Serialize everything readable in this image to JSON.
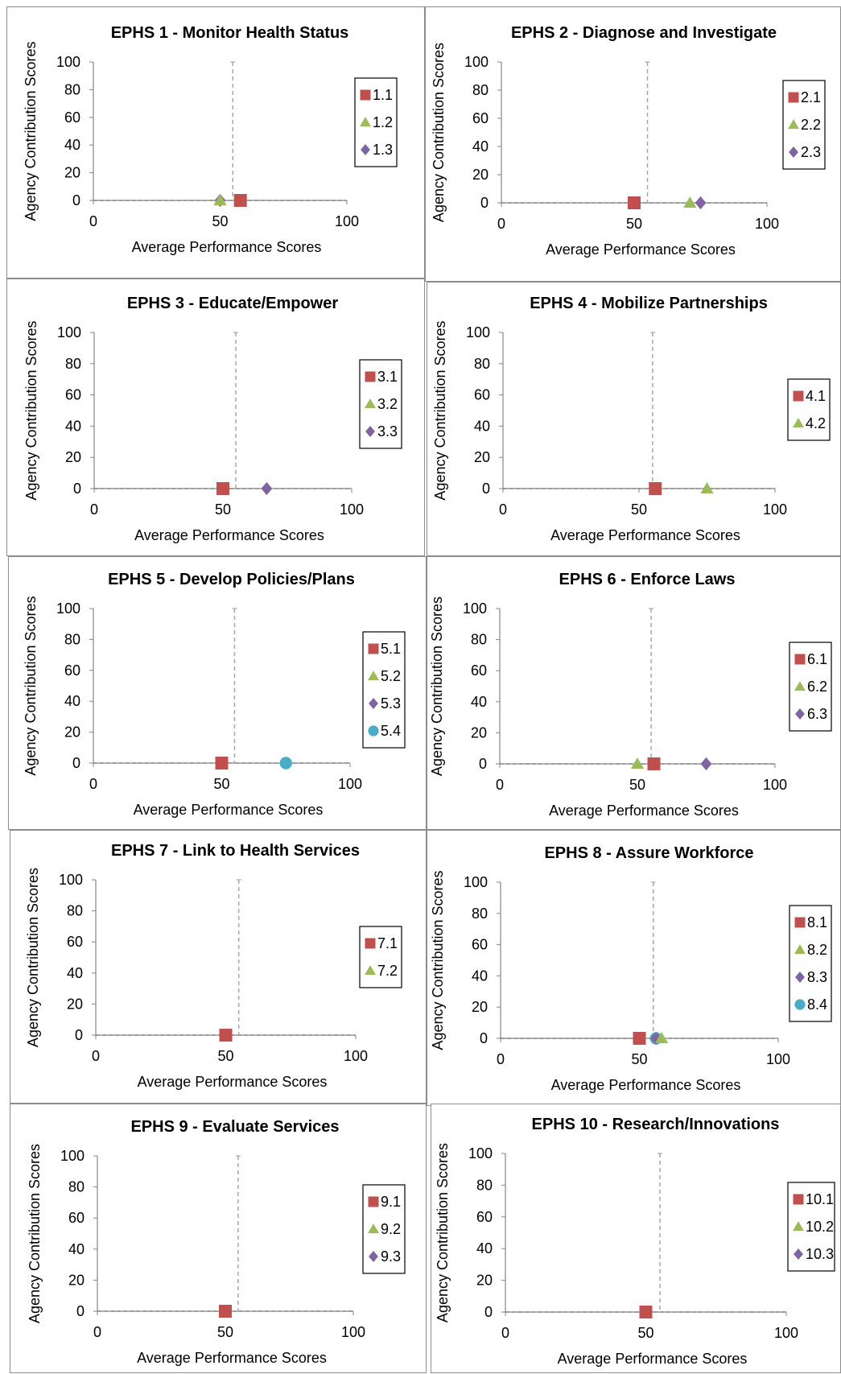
{
  "colors": {
    "s1": "#c0504d",
    "s2": "#9bbb59",
    "s3": "#8064a2",
    "s4": "#4bacc6",
    "axis": "#868686",
    "refline": "#a6a6a6",
    "border": "#8c8c8c"
  },
  "chart_data": [
    {
      "type": "scatter",
      "title": "EPHS 1 - Monitor Health Status",
      "xlabel": "Average Performance Scores",
      "ylabel": "Agency Contribution Scores",
      "xlim": [
        0,
        100
      ],
      "ylim": [
        0,
        100
      ],
      "xticks": [
        "0",
        "50",
        "100"
      ],
      "yticks": [
        "0",
        "20",
        "40",
        "60",
        "80",
        "100"
      ],
      "reference_x": 55,
      "grid": false,
      "legend_position": "right",
      "series": [
        {
          "name": "1.1",
          "marker": "square",
          "x": 58,
          "y": 0
        },
        {
          "name": "1.2",
          "marker": "triangle",
          "x": 50,
          "y": 0
        },
        {
          "name": "1.3",
          "marker": "diamond",
          "x": 50,
          "y": 0
        }
      ]
    },
    {
      "type": "scatter",
      "title": "EPHS 2 - Diagnose and Investigate",
      "xlabel": "Average Performance Scores",
      "ylabel": "Agency Contribution Scores",
      "xlim": [
        0,
        100
      ],
      "ylim": [
        0,
        100
      ],
      "xticks": [
        "0",
        "50",
        "100"
      ],
      "yticks": [
        "0",
        "20",
        "40",
        "60",
        "80",
        "100"
      ],
      "reference_x": 55,
      "grid": false,
      "legend_position": "right",
      "series": [
        {
          "name": "2.1",
          "marker": "square",
          "x": 50,
          "y": 0
        },
        {
          "name": "2.2",
          "marker": "triangle",
          "x": 71,
          "y": 0
        },
        {
          "name": "2.3",
          "marker": "diamond",
          "x": 75,
          "y": 0
        }
      ]
    },
    {
      "type": "scatter",
      "title": "EPHS 3 - Educate/Empower",
      "xlabel": "Average Performance Scores",
      "ylabel": "Agency Contribution Scores",
      "xlim": [
        0,
        100
      ],
      "ylim": [
        0,
        100
      ],
      "xticks": [
        "0",
        "50",
        "100"
      ],
      "yticks": [
        "0",
        "20",
        "40",
        "60",
        "80",
        "100"
      ],
      "reference_x": 55,
      "grid": false,
      "legend_position": "right",
      "series": [
        {
          "name": "3.1",
          "marker": "square",
          "x": 50,
          "y": 0
        },
        {
          "name": "3.2",
          "marker": "triangle",
          "x": 50,
          "y": 0
        },
        {
          "name": "3.3",
          "marker": "diamond",
          "x": 67,
          "y": 0
        }
      ]
    },
    {
      "type": "scatter",
      "title": "EPHS 4 - Mobilize Partnerships",
      "xlabel": "Average Performance Scores",
      "ylabel": "Agency Contribution Scores",
      "xlim": [
        0,
        100
      ],
      "ylim": [
        0,
        100
      ],
      "xticks": [
        "0",
        "50",
        "100"
      ],
      "yticks": [
        "0",
        "20",
        "40",
        "60",
        "80",
        "100"
      ],
      "reference_x": 55,
      "grid": false,
      "legend_position": "right",
      "series": [
        {
          "name": "4.1",
          "marker": "square",
          "x": 56,
          "y": 0
        },
        {
          "name": "4.2",
          "marker": "triangle",
          "x": 75,
          "y": 0
        }
      ]
    },
    {
      "type": "scatter",
      "title": "EPHS 5 - Develop Policies/Plans",
      "xlabel": "Average Performance Scores",
      "ylabel": "Agency Contribution Scores",
      "xlim": [
        0,
        100
      ],
      "ylim": [
        0,
        100
      ],
      "xticks": [
        "0",
        "50",
        "100"
      ],
      "yticks": [
        "0",
        "20",
        "40",
        "60",
        "80",
        "100"
      ],
      "reference_x": 55,
      "grid": false,
      "legend_position": "right",
      "series": [
        {
          "name": "5.1",
          "marker": "square",
          "x": 50,
          "y": 0
        },
        {
          "name": "5.2",
          "marker": "triangle",
          "x": 50,
          "y": 0
        },
        {
          "name": "5.3",
          "marker": "diamond",
          "x": 50,
          "y": 0
        },
        {
          "name": "5.4",
          "marker": "circle",
          "x": 75,
          "y": 0
        }
      ]
    },
    {
      "type": "scatter",
      "title": "EPHS 6 - Enforce Laws",
      "xlabel": "Average Performance Scores",
      "ylabel": "Agency Contribution Scores",
      "xlim": [
        0,
        100
      ],
      "ylim": [
        0,
        100
      ],
      "xticks": [
        "0",
        "50",
        "100"
      ],
      "yticks": [
        "0",
        "20",
        "40",
        "60",
        "80",
        "100"
      ],
      "reference_x": 55,
      "grid": false,
      "legend_position": "right",
      "series": [
        {
          "name": "6.1",
          "marker": "square",
          "x": 56,
          "y": 0
        },
        {
          "name": "6.2",
          "marker": "triangle",
          "x": 50,
          "y": 0
        },
        {
          "name": "6.3",
          "marker": "diamond",
          "x": 75,
          "y": 0
        }
      ]
    },
    {
      "type": "scatter",
      "title": "EPHS 7 - Link to Health Services",
      "xlabel": "Average Performance Scores",
      "ylabel": "Agency Contribution Scores",
      "xlim": [
        0,
        100
      ],
      "ylim": [
        0,
        100
      ],
      "xticks": [
        "0",
        "50",
        "100"
      ],
      "yticks": [
        "0",
        "20",
        "40",
        "60",
        "80",
        "100"
      ],
      "reference_x": 55,
      "grid": false,
      "legend_position": "right",
      "series": [
        {
          "name": "7.1",
          "marker": "square",
          "x": 50,
          "y": 0
        },
        {
          "name": "7.2",
          "marker": "triangle",
          "x": 50,
          "y": 0
        }
      ]
    },
    {
      "type": "scatter",
      "title": "EPHS 8 - Assure Workforce",
      "xlabel": "Average Performance Scores",
      "ylabel": "Agency Contribution Scores",
      "xlim": [
        0,
        100
      ],
      "ylim": [
        0,
        100
      ],
      "xticks": [
        "0",
        "50",
        "100"
      ],
      "yticks": [
        "0",
        "20",
        "40",
        "60",
        "80",
        "100"
      ],
      "reference_x": 55,
      "grid": false,
      "legend_position": "right",
      "series": [
        {
          "name": "8.1",
          "marker": "square",
          "x": 50,
          "y": 0
        },
        {
          "name": "8.2",
          "marker": "triangle",
          "x": 58,
          "y": 0
        },
        {
          "name": "8.3",
          "marker": "diamond",
          "x": 56,
          "y": 0
        },
        {
          "name": "8.4",
          "marker": "circle",
          "x": 56,
          "y": 0
        }
      ]
    },
    {
      "type": "scatter",
      "title": "EPHS 9 - Evaluate Services",
      "xlabel": "Average Performance Scores",
      "ylabel": "Agency Contribution Scores",
      "xlim": [
        0,
        100
      ],
      "ylim": [
        0,
        100
      ],
      "xticks": [
        "0",
        "50",
        "100"
      ],
      "yticks": [
        "0",
        "20",
        "40",
        "60",
        "80",
        "100"
      ],
      "reference_x": 55,
      "grid": false,
      "legend_position": "right",
      "series": [
        {
          "name": "9.1",
          "marker": "square",
          "x": 50,
          "y": 0
        },
        {
          "name": "9.2",
          "marker": "triangle",
          "x": 50,
          "y": 0
        },
        {
          "name": "9.3",
          "marker": "diamond",
          "x": 50,
          "y": 0
        }
      ]
    },
    {
      "type": "scatter",
      "title": "EPHS 10 - Research/Innovations",
      "xlabel": "Average Performance Scores",
      "ylabel": "Agency Contribution Scores",
      "xlim": [
        0,
        100
      ],
      "ylim": [
        0,
        100
      ],
      "xticks": [
        "0",
        "50",
        "100"
      ],
      "yticks": [
        "0",
        "20",
        "40",
        "60",
        "80",
        "100"
      ],
      "reference_x": 55,
      "grid": false,
      "legend_position": "right",
      "series": [
        {
          "name": "10.1",
          "marker": "square",
          "x": 50,
          "y": 0
        },
        {
          "name": "10.2",
          "marker": "triangle",
          "x": 50,
          "y": 0
        },
        {
          "name": "10.3",
          "marker": "diamond",
          "x": 50,
          "y": 0
        }
      ]
    }
  ]
}
